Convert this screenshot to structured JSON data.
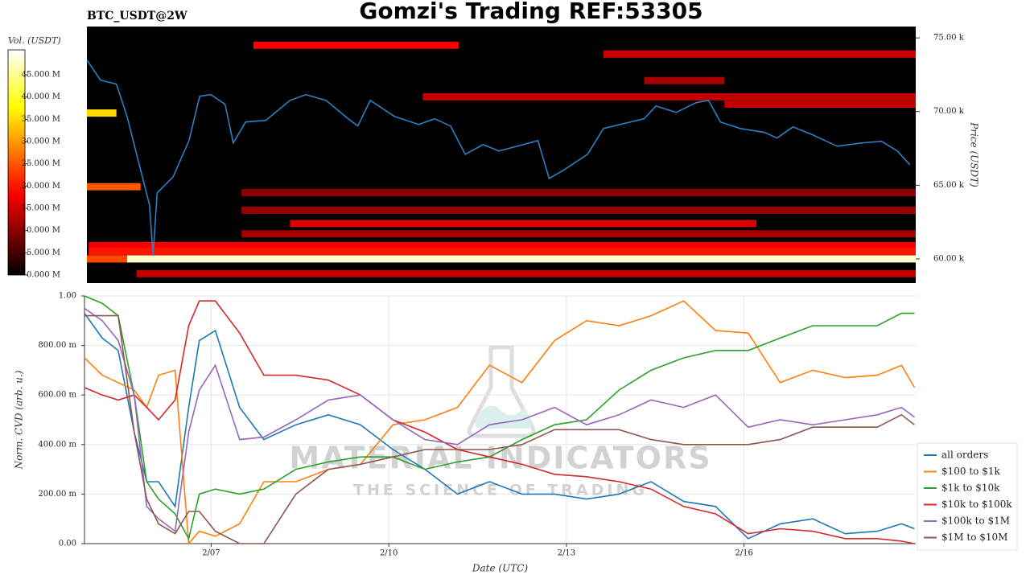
{
  "chart_data": [
    {
      "type": "heatmap",
      "title": "Gomzi's Trading REF:53305",
      "subtitle": "BTC_USDT@2W",
      "y_label": "Price (USDT)",
      "colorbar_label": "Vol. (USDT)",
      "colormap": "hot",
      "clim": [
        0,
        50600000
      ],
      "cticks": [
        {
          "value": 0,
          "label": "0.000 M"
        },
        {
          "value": 5000000,
          "label": "5.000 M"
        },
        {
          "value": 10000000,
          "label": "10.000 M"
        },
        {
          "value": 15000000,
          "label": "15.000 M"
        },
        {
          "value": 20000000,
          "label": "20.000 M"
        },
        {
          "value": 25000000,
          "label": "25.000 M"
        },
        {
          "value": 30000000,
          "label": "30.000 M"
        },
        {
          "value": 35000000,
          "label": "35.000 M"
        },
        {
          "value": 40000000,
          "label": "40.000 M"
        },
        {
          "value": 45000000,
          "label": "45.000 M"
        }
      ],
      "xlim": [
        4.86,
        18.9
      ],
      "ylim": [
        58360,
        75770
      ],
      "yticks": [
        {
          "value": 60000,
          "label": "60.00 k"
        },
        {
          "value": 65000,
          "label": "65.00 k"
        },
        {
          "value": 70000,
          "label": "70.00 k"
        },
        {
          "value": 75000,
          "label": "75.00 k"
        }
      ],
      "bands": [
        {
          "price": 60000,
          "start": 5.54,
          "end": 18.9,
          "volume": 48000000
        },
        {
          "price": 60000,
          "start": 4.86,
          "end": 5.54,
          "volume": 24000000
        },
        {
          "price": 69900,
          "start": 4.86,
          "end": 5.36,
          "volume": 35000000
        },
        {
          "price": 64900,
          "start": 4.86,
          "end": 5.77,
          "volume": 25000000
        },
        {
          "price": 74500,
          "start": 7.68,
          "end": 11.16,
          "volume": 18000000
        },
        {
          "price": 73900,
          "start": 13.61,
          "end": 18.9,
          "volume": 15000000
        },
        {
          "price": 71000,
          "start": 10.55,
          "end": 18.9,
          "volume": 14000000
        },
        {
          "price": 70500,
          "start": 15.66,
          "end": 18.9,
          "volume": 14000000
        },
        {
          "price": 72100,
          "start": 14.3,
          "end": 15.66,
          "volume": 12000000
        },
        {
          "price": 64500,
          "start": 7.48,
          "end": 18.9,
          "volume": 10000000
        },
        {
          "price": 63300,
          "start": 7.48,
          "end": 18.9,
          "volume": 11000000
        },
        {
          "price": 62400,
          "start": 8.3,
          "end": 16.2,
          "volume": 16000000
        },
        {
          "price": 61700,
          "start": 7.48,
          "end": 18.9,
          "volume": 12000000
        },
        {
          "price": 60900,
          "start": 4.89,
          "end": 18.9,
          "volume": 18000000
        },
        {
          "price": 60500,
          "start": 4.89,
          "end": 18.9,
          "volume": 20000000
        },
        {
          "price": 59000,
          "start": 5.7,
          "end": 18.9,
          "volume": 14000000
        }
      ],
      "price": {
        "color": "#2f7fc1",
        "x": [
          4.86,
          5.09,
          5.36,
          5.54,
          5.73,
          5.92,
          5.98,
          6.05,
          6.32,
          6.59,
          6.77,
          6.96,
          7.2,
          7.34,
          7.55,
          7.89,
          8.3,
          8.57,
          8.91,
          9.32,
          9.45,
          9.66,
          10.07,
          10.48,
          10.75,
          11.02,
          11.27,
          11.57,
          11.84,
          12.25,
          12.5,
          12.69,
          12.93,
          13.34,
          13.61,
          13.89,
          14.3,
          14.5,
          14.84,
          15.18,
          15.39,
          15.59,
          15.93,
          16.34,
          16.55,
          16.82,
          17.16,
          17.57,
          17.98,
          18.32,
          18.59,
          18.8
        ],
        "values": [
          73500,
          72130,
          71860,
          69670,
          66670,
          63660,
          60220,
          64480,
          65570,
          68030,
          71040,
          71150,
          70490,
          67870,
          69290,
          69400,
          70760,
          71150,
          70760,
          69400,
          69020,
          70760,
          69670,
          69120,
          69510,
          69020,
          67100,
          67760,
          67320,
          67760,
          68030,
          65460,
          66010,
          67100,
          68850,
          69120,
          69510,
          70380,
          69940,
          70600,
          70760,
          69290,
          68850,
          68580,
          68200,
          68960,
          68410,
          67650,
          67870,
          67980,
          67320,
          66390
        ]
      }
    },
    {
      "type": "line",
      "x_label": "Date (UTC)",
      "y_label": "Norm. CVD (arb. u.)",
      "xlim": [
        4.86,
        18.9
      ],
      "xticks": [
        {
          "value": 7,
          "label": "2/07"
        },
        {
          "value": 10,
          "label": "2/10"
        },
        {
          "value": 13,
          "label": "2/13"
        },
        {
          "value": 16,
          "label": "2/16"
        }
      ],
      "ylim": [
        0,
        1
      ],
      "yticks": [
        {
          "value": 0,
          "label": "0.00"
        },
        {
          "value": 0.2,
          "label": "200.00 m"
        },
        {
          "value": 0.4,
          "label": "400.00 m"
        },
        {
          "value": 0.6,
          "label": "600.00 m"
        },
        {
          "value": 0.8,
          "label": "800.00 m"
        },
        {
          "value": 1,
          "label": "1.00"
        }
      ],
      "grid": true,
      "legend": "lower right",
      "watermark": [
        "MATERIAL INDICATORS",
        "THE SCIENCE OF TRADING"
      ],
      "x": [
        4.86,
        5.16,
        5.43,
        5.7,
        5.91,
        6.11,
        6.39,
        6.62,
        6.8,
        7.07,
        7.48,
        7.89,
        8.43,
        8.98,
        9.52,
        10.07,
        10.61,
        11.16,
        11.7,
        12.25,
        12.8,
        13.34,
        13.89,
        14.43,
        14.98,
        15.52,
        16.07,
        16.61,
        17.16,
        17.71,
        18.25,
        18.66,
        18.88
      ],
      "series": [
        {
          "name": "all orders",
          "color": "#1f77b4",
          "values": [
            0.93,
            0.83,
            0.78,
            0.45,
            0.25,
            0.25,
            0.15,
            0.55,
            0.82,
            0.86,
            0.55,
            0.42,
            0.48,
            0.52,
            0.48,
            0.38,
            0.3,
            0.2,
            0.25,
            0.2,
            0.2,
            0.18,
            0.2,
            0.25,
            0.17,
            0.15,
            0.02,
            0.08,
            0.1,
            0.04,
            0.05,
            0.08,
            0.06
          ]
        },
        {
          "name": "$100 to $1k",
          "color": "#ff7f0e",
          "values": [
            0.75,
            0.68,
            0.65,
            0.62,
            0.55,
            0.68,
            0.7,
            0.0,
            0.05,
            0.03,
            0.08,
            0.25,
            0.25,
            0.3,
            0.32,
            0.48,
            0.5,
            0.55,
            0.72,
            0.65,
            0.82,
            0.9,
            0.88,
            0.92,
            0.98,
            0.86,
            0.85,
            0.65,
            0.7,
            0.67,
            0.68,
            0.72,
            0.63
          ]
        },
        {
          "name": "$1k to $10k",
          "color": "#2ca02c",
          "values": [
            1.0,
            0.97,
            0.92,
            0.6,
            0.25,
            0.18,
            0.12,
            0.02,
            0.2,
            0.22,
            0.2,
            0.22,
            0.3,
            0.33,
            0.35,
            0.35,
            0.3,
            0.33,
            0.35,
            0.42,
            0.48,
            0.5,
            0.62,
            0.7,
            0.75,
            0.78,
            0.78,
            0.83,
            0.88,
            0.88,
            0.88,
            0.93,
            0.93
          ]
        },
        {
          "name": "$10k to $100k",
          "color": "#d62728",
          "values": [
            0.63,
            0.6,
            0.58,
            0.6,
            0.55,
            0.5,
            0.58,
            0.88,
            0.98,
            0.98,
            0.85,
            0.68,
            0.68,
            0.66,
            0.6,
            0.5,
            0.45,
            0.38,
            0.35,
            0.32,
            0.28,
            0.27,
            0.25,
            0.22,
            0.15,
            0.12,
            0.04,
            0.06,
            0.05,
            0.02,
            0.02,
            0.01,
            0.0
          ]
        },
        {
          "name": "$100k to $1M",
          "color": "#9467bd",
          "values": [
            0.95,
            0.9,
            0.82,
            0.6,
            0.15,
            0.1,
            0.05,
            0.45,
            0.62,
            0.72,
            0.42,
            0.43,
            0.5,
            0.58,
            0.6,
            0.5,
            0.42,
            0.4,
            0.48,
            0.5,
            0.55,
            0.48,
            0.52,
            0.58,
            0.55,
            0.6,
            0.47,
            0.5,
            0.48,
            0.5,
            0.52,
            0.55,
            0.51
          ]
        },
        {
          "name": "$1M to $10M",
          "color": "#8c564b",
          "values": [
            0.92,
            0.92,
            0.92,
            0.45,
            0.18,
            0.08,
            0.04,
            0.13,
            0.13,
            0.05,
            0.0,
            0.0,
            0.2,
            0.3,
            0.32,
            0.35,
            0.38,
            0.38,
            0.38,
            0.4,
            0.46,
            0.46,
            0.46,
            0.42,
            0.4,
            0.4,
            0.4,
            0.42,
            0.47,
            0.47,
            0.47,
            0.52,
            0.48
          ]
        }
      ]
    }
  ]
}
